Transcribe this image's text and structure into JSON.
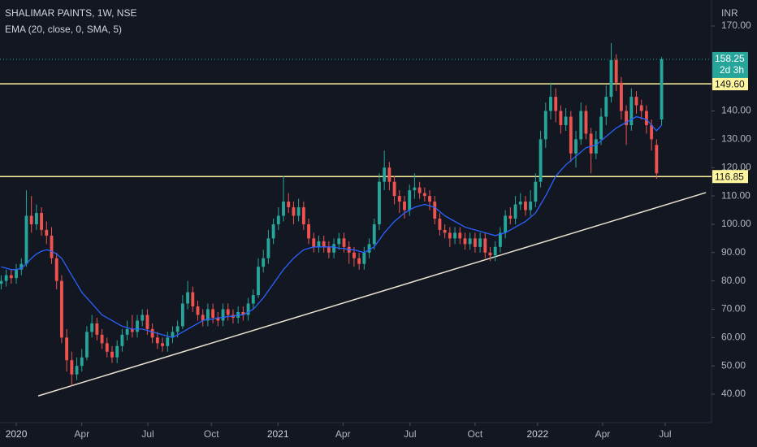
{
  "chart_data": {
    "type": "candlestick",
    "title": "SHALIMAR PAINTS, 1W, NSE",
    "currency": "INR",
    "xlim": [
      -0.23,
      140.9
    ],
    "ylim": [
      29.97,
      179.18
    ],
    "xticks": [
      {
        "value": 3,
        "label": "2020"
      },
      {
        "value": 16,
        "label": "Apr"
      },
      {
        "value": 29.1,
        "label": "Jul"
      },
      {
        "value": 41.7,
        "label": "Oct"
      },
      {
        "value": 54.9,
        "label": "2021"
      },
      {
        "value": 67.8,
        "label": "Apr"
      },
      {
        "value": 81.1,
        "label": "Jul"
      },
      {
        "value": 94,
        "label": "Oct"
      },
      {
        "value": 106.4,
        "label": "2022"
      },
      {
        "value": 119.3,
        "label": "Apr"
      },
      {
        "value": 131.7,
        "label": "Jul"
      }
    ],
    "yticks": [
      {
        "value": 40,
        "label": "40.00"
      },
      {
        "value": 50,
        "label": "50.00"
      },
      {
        "value": 60,
        "label": "60.00"
      },
      {
        "value": 70,
        "label": "70.00"
      },
      {
        "value": 80,
        "label": "80.00"
      },
      {
        "value": 90,
        "label": "90.00"
      },
      {
        "value": 100,
        "label": "100.00"
      },
      {
        "value": 110,
        "label": "110.00"
      },
      {
        "value": 120,
        "label": "120.00"
      },
      {
        "value": 130,
        "label": "130.00"
      },
      {
        "value": 140,
        "label": "140.00"
      },
      {
        "value": 170,
        "label": "170.00"
      }
    ],
    "up_color": "#26a69a",
    "down_color": "#ef5350",
    "open": [
      79,
      80,
      82,
      81,
      84,
      86,
      103,
      100,
      104,
      98,
      96,
      88,
      80,
      60,
      52,
      47,
      50,
      53,
      62,
      65,
      61,
      58,
      55,
      53,
      57,
      61,
      63,
      62,
      66,
      68,
      63,
      60,
      58,
      57,
      60,
      62,
      64,
      72,
      76,
      71,
      68,
      66,
      70,
      67,
      66,
      70,
      68,
      67,
      69,
      68,
      72,
      75,
      85,
      88,
      95,
      100,
      103,
      108,
      106,
      103,
      106,
      100,
      95,
      92,
      94,
      92,
      90,
      93,
      95,
      92,
      90,
      88,
      86,
      90,
      93,
      100,
      115,
      120,
      115,
      110,
      108,
      105,
      112,
      113,
      111,
      110,
      108,
      102,
      98,
      97,
      95,
      97,
      95,
      93,
      95,
      92,
      95,
      90,
      89,
      92,
      97,
      103,
      102,
      107,
      108,
      105,
      108,
      115,
      130,
      140,
      145,
      140,
      135,
      138,
      125,
      130,
      140,
      132,
      125,
      130,
      138,
      145,
      158,
      150,
      140,
      135,
      145,
      142,
      140,
      135,
      128,
      137
    ],
    "high": [
      82,
      84,
      84,
      86,
      88,
      112,
      110,
      107,
      106,
      101,
      99,
      90,
      82,
      63,
      55,
      53,
      56,
      64,
      68,
      67,
      63,
      60,
      57,
      59,
      63,
      66,
      68,
      68,
      70,
      70,
      65,
      62,
      60,
      62,
      64,
      66,
      75,
      80,
      78,
      73,
      70,
      72,
      72,
      69,
      72,
      72,
      70,
      71,
      71,
      74,
      77,
      88,
      91,
      98,
      102,
      106,
      117,
      111,
      108,
      109,
      108,
      102,
      97,
      96,
      96,
      94,
      95,
      97,
      97,
      94,
      92,
      90,
      92,
      95,
      102,
      118,
      126,
      122,
      117,
      112,
      110,
      114,
      118,
      115,
      113,
      112,
      110,
      104,
      100,
      99,
      99,
      99,
      97,
      97,
      97,
      97,
      97,
      92,
      94,
      99,
      105,
      106,
      110,
      111,
      110,
      112,
      118,
      133,
      143,
      150,
      148,
      142,
      141,
      140,
      133,
      143,
      142,
      134,
      133,
      141,
      149,
      164,
      160,
      152,
      142,
      148,
      147,
      144,
      142,
      137,
      130,
      159
    ],
    "low": [
      77,
      78,
      79,
      79,
      82,
      85,
      97,
      98,
      96,
      93,
      86,
      77,
      58,
      48,
      43,
      45,
      48,
      52,
      60,
      59,
      56,
      53,
      51,
      51,
      55,
      59,
      60,
      60,
      64,
      61,
      58,
      56,
      55,
      55,
      58,
      60,
      63,
      70,
      69,
      66,
      64,
      64,
      65,
      64,
      64,
      66,
      65,
      65,
      66,
      66,
      70,
      74,
      83,
      86,
      93,
      98,
      101,
      104,
      100,
      101,
      98,
      93,
      90,
      90,
      90,
      88,
      88,
      91,
      90,
      86,
      85,
      84,
      84,
      88,
      91,
      98,
      112,
      112,
      107,
      104,
      102,
      103,
      109,
      109,
      108,
      105,
      100,
      96,
      95,
      92,
      93,
      93,
      91,
      91,
      90,
      90,
      88,
      87,
      87,
      90,
      95,
      100,
      100,
      105,
      103,
      103,
      106,
      113,
      127,
      137,
      136,
      132,
      133,
      122,
      120,
      128,
      130,
      118,
      123,
      128,
      135,
      143,
      147,
      137,
      128,
      133,
      139,
      137,
      132,
      126,
      116,
      135
    ],
    "close": [
      80,
      82,
      81,
      84,
      86,
      103,
      100,
      104,
      98,
      96,
      88,
      80,
      60,
      52,
      47,
      50,
      53,
      62,
      65,
      61,
      58,
      55,
      53,
      57,
      61,
      63,
      62,
      66,
      68,
      63,
      60,
      58,
      57,
      60,
      62,
      64,
      72,
      76,
      71,
      68,
      66,
      70,
      67,
      66,
      70,
      68,
      67,
      69,
      68,
      72,
      75,
      85,
      88,
      95,
      100,
      103,
      108,
      106,
      103,
      106,
      100,
      95,
      92,
      94,
      92,
      90,
      93,
      95,
      92,
      90,
      88,
      86,
      90,
      93,
      100,
      115,
      120,
      115,
      110,
      108,
      105,
      112,
      113,
      111,
      110,
      108,
      102,
      98,
      97,
      95,
      97,
      95,
      93,
      95,
      92,
      95,
      90,
      89,
      92,
      97,
      103,
      102,
      107,
      108,
      105,
      108,
      115,
      130,
      140,
      145,
      140,
      135,
      138,
      125,
      130,
      140,
      132,
      125,
      130,
      138,
      145,
      158,
      150,
      140,
      135,
      145,
      142,
      140,
      135,
      130,
      118,
      158.25
    ],
    "ema": {
      "name": "EMA (20, close, 0, SMA, 5)",
      "color": "#2962ff",
      "values": [
        85,
        84.5,
        84,
        84,
        84.5,
        86,
        88,
        89.5,
        90.5,
        91,
        90.5,
        89.5,
        88,
        85,
        82,
        79,
        76,
        74,
        72,
        70,
        68,
        67,
        66,
        65,
        64,
        63.5,
        63,
        63,
        63,
        62.5,
        62,
        61.5,
        61,
        60.5,
        60,
        61,
        62,
        63,
        64,
        65,
        66,
        66.5,
        66.5,
        67,
        67,
        67.5,
        67.5,
        68,
        68,
        69,
        70,
        72,
        74,
        76.5,
        79,
        81.5,
        84,
        86,
        88,
        89.5,
        91,
        91.5,
        92,
        92,
        92,
        92,
        92,
        91.5,
        91.5,
        91,
        91,
        90.5,
        90,
        91,
        92,
        94.5,
        97,
        99,
        101,
        102.5,
        104,
        105,
        106,
        106.5,
        107,
        106.5,
        106,
        104.5,
        103,
        102,
        101,
        100,
        99,
        98.5,
        98,
        97.5,
        97,
        96.5,
        96,
        96.5,
        97,
        98,
        99,
        100,
        101,
        102.5,
        104,
        107,
        110,
        113.5,
        117,
        119,
        121,
        122.5,
        124,
        125.5,
        127,
        127.5,
        128,
        129.5,
        131,
        132.5,
        134,
        135,
        136,
        137,
        138,
        137.5,
        137,
        135,
        133,
        135
      ]
    },
    "levels": [
      {
        "value": 149.6,
        "label": "149.60",
        "color": "#fff59d"
      },
      {
        "value": 116.85,
        "label": "116.85",
        "color": "#fff59d"
      }
    ],
    "last_price": {
      "value": 158.25,
      "label": "158.25",
      "countdown": "2d 3h"
    },
    "trendline": {
      "x": [
        7.35,
        139.8
      ],
      "y": [
        39.4,
        111.2
      ],
      "color": "#e8e2cf"
    }
  }
}
